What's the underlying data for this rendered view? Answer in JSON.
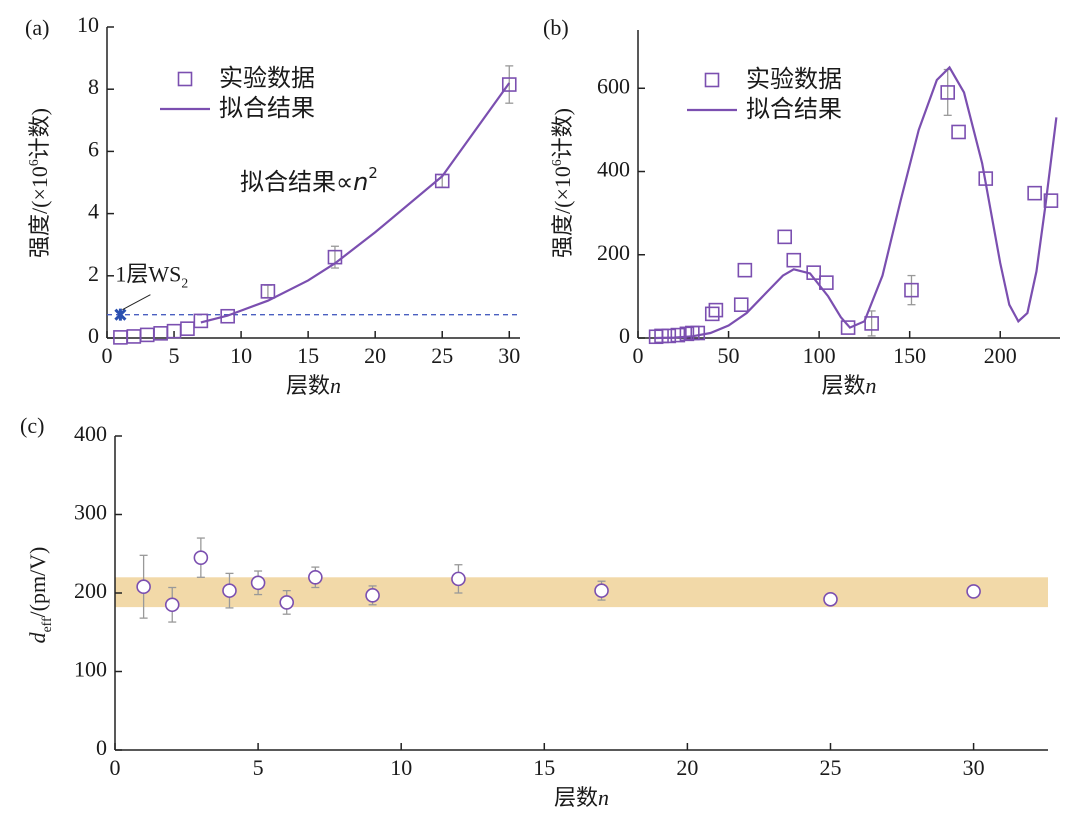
{
  "chart_data": [
    {
      "type": "scatter",
      "panel": "(a)",
      "xlabel": [
        "层数",
        "n"
      ],
      "ylabel": [
        "强度/(×10",
        "6",
        "计数)"
      ],
      "xlim": [
        0,
        30.8
      ],
      "ylim": [
        0,
        10
      ],
      "xticks": [
        0,
        5,
        10,
        15,
        20,
        25,
        30
      ],
      "yticks": [
        0,
        2,
        4,
        6,
        8,
        10
      ],
      "legend": "upper-left",
      "series": [
        {
          "name": "实验数据",
          "type": "scatter",
          "marker": "square",
          "color": "#7b4fb0",
          "x": [
            1,
            2,
            3,
            4,
            5,
            6,
            7,
            9,
            12,
            17,
            25,
            30
          ],
          "values": [
            0.02,
            0.05,
            0.1,
            0.15,
            0.22,
            0.3,
            0.55,
            0.7,
            1.5,
            2.6,
            5.05,
            8.15
          ],
          "errors": [
            null,
            null,
            null,
            null,
            null,
            null,
            null,
            null,
            0.2,
            0.35,
            0.2,
            0.6
          ]
        },
        {
          "name": "拟合结果",
          "type": "line",
          "color": "#7b4fb0",
          "x": [
            7,
            9,
            12,
            15,
            17,
            20,
            25,
            30
          ],
          "values": [
            0.5,
            0.72,
            1.2,
            1.85,
            2.4,
            3.4,
            5.2,
            8.2
          ]
        }
      ],
      "reference_line": 0.75,
      "annotation": {
        "text": [
          "1层WS",
          "2"
        ],
        "x": 1,
        "y": 0.75,
        "color": "#2a4fb0"
      },
      "fit_label": [
        "拟合结果∝",
        "n",
        "2"
      ]
    },
    {
      "type": "scatter",
      "panel": "(b)",
      "xlabel": [
        "层数",
        "n"
      ],
      "ylabel": [
        "强度/(×10",
        "6",
        "计数)"
      ],
      "xlim": [
        0,
        233
      ],
      "ylim": [
        0,
        740
      ],
      "xticks": [
        0,
        50,
        100,
        150,
        200
      ],
      "yticks": [
        0,
        200,
        400,
        600
      ],
      "legend": "upper-left",
      "series": [
        {
          "name": "实验数据",
          "type": "scatter",
          "marker": "square",
          "color": "#7b4fb0",
          "x": [
            10,
            13,
            17,
            22,
            27,
            30,
            33,
            41,
            43,
            57,
            59,
            81,
            86,
            97,
            104,
            116,
            129,
            151,
            171,
            177,
            192,
            219,
            228
          ],
          "values": [
            3,
            5,
            5,
            7,
            10,
            12,
            12,
            58,
            67,
            80,
            163,
            243,
            187,
            157,
            133,
            25,
            35,
            115,
            590,
            495,
            383,
            348,
            330
          ],
          "errors": [
            null,
            null,
            null,
            null,
            null,
            null,
            null,
            null,
            null,
            null,
            null,
            null,
            null,
            null,
            null,
            null,
            30,
            35,
            55,
            null,
            null,
            null,
            null
          ]
        },
        {
          "name": "拟合结果",
          "type": "line",
          "color": "#7b4fb0",
          "x": [
            10,
            20,
            30,
            40,
            50,
            60,
            70,
            80,
            86,
            95,
            105,
            112,
            117,
            125,
            135,
            145,
            155,
            165,
            172,
            180,
            190,
            200,
            205,
            210,
            215,
            220,
            225,
            231
          ],
          "values": [
            0,
            1,
            4,
            12,
            30,
            60,
            105,
            150,
            165,
            155,
            100,
            50,
            25,
            40,
            150,
            330,
            500,
            620,
            650,
            590,
            420,
            180,
            80,
            40,
            60,
            160,
            320,
            530
          ]
        }
      ]
    },
    {
      "type": "scatter",
      "panel": "(c)",
      "xlabel": [
        "层数",
        "n"
      ],
      "ylabel": [
        "d",
        "eff",
        "/(pm/V)"
      ],
      "xlim": [
        0,
        32.6
      ],
      "ylim": [
        0,
        400
      ],
      "xticks": [
        0,
        5,
        10,
        15,
        20,
        25,
        30
      ],
      "yticks": [
        0,
        100,
        200,
        300,
        400
      ],
      "band": [
        182,
        220
      ],
      "band_color": "#f2d9a8",
      "series": [
        {
          "type": "scatter",
          "marker": "circle",
          "color": "#7b4fb0",
          "x": [
            1,
            2,
            3,
            4,
            5,
            6,
            7,
            9,
            12,
            17,
            25,
            30
          ],
          "values": [
            208,
            185,
            245,
            203,
            213,
            188,
            220,
            197,
            218,
            203,
            192,
            202
          ],
          "errors": [
            40,
            22,
            25,
            22,
            15,
            15,
            13,
            12,
            18,
            12,
            5,
            5
          ]
        }
      ]
    }
  ]
}
